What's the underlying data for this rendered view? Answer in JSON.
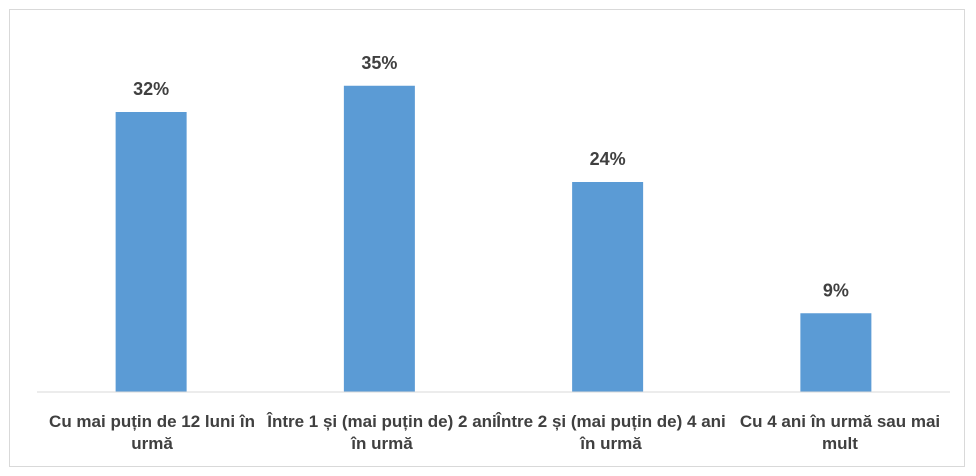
{
  "chart_data": {
    "type": "bar",
    "categories": [
      "Cu mai puțin de 12 luni în urmă",
      "Între 1 și (mai puțin de) 2 ani în urmă",
      "Între 2 și (mai puțin de) 4 ani în urmă",
      "Cu 4 ani în urmă sau mai mult"
    ],
    "values": [
      32,
      35,
      24,
      9
    ],
    "data_labels": [
      "32%",
      "35%",
      "24%",
      "9%"
    ],
    "ylim": [
      0,
      40
    ],
    "grid": false,
    "legend": "none",
    "colors": {
      "bar": "#5b9bd5",
      "label": "#404040",
      "axis": "#d9d9d9"
    }
  }
}
